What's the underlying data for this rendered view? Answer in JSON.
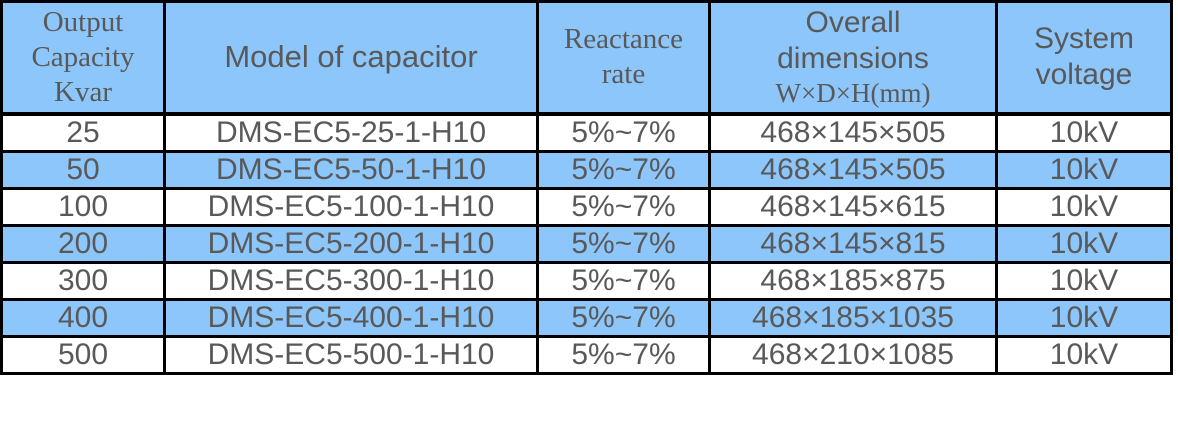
{
  "colors": {
    "cell_blue": "#8dc6fa",
    "border": "#000000",
    "text": "#595959",
    "page_bg": "#ffffff"
  },
  "header": {
    "capacity_lines": [
      "Output",
      "Capacity",
      "Kvar"
    ],
    "model": "Model of capacitor",
    "reactance_lines": [
      "Reactance",
      "rate"
    ],
    "dimensions_lines": [
      "Overall",
      "dimensions"
    ],
    "dimensions_sub": "W×D×H(mm)",
    "voltage_lines": [
      "System",
      "voltage"
    ]
  },
  "rows": [
    {
      "capacity": "25",
      "model": "DMS-EC5-25-1-H10",
      "reactance": "5%~7%",
      "dimensions": "468×145×505",
      "voltage": "10kV"
    },
    {
      "capacity": "50",
      "model": "DMS-EC5-50-1-H10",
      "reactance": "5%~7%",
      "dimensions": "468×145×505",
      "voltage": "10kV"
    },
    {
      "capacity": "100",
      "model": "DMS-EC5-100-1-H10",
      "reactance": "5%~7%",
      "dimensions": "468×145×615",
      "voltage": "10kV"
    },
    {
      "capacity": "200",
      "model": "DMS-EC5-200-1-H10",
      "reactance": "5%~7%",
      "dimensions": "468×145×815",
      "voltage": "10kV"
    },
    {
      "capacity": "300",
      "model": "DMS-EC5-300-1-H10",
      "reactance": "5%~7%",
      "dimensions": "468×185×875",
      "voltage": "10kV"
    },
    {
      "capacity": "400",
      "model": "DMS-EC5-400-1-H10",
      "reactance": "5%~7%",
      "dimensions": "468×185×1035",
      "voltage": "10kV"
    },
    {
      "capacity": "500",
      "model": "DMS-EC5-500-1-H10",
      "reactance": "5%~7%",
      "dimensions": "468×210×1085",
      "voltage": "10kV"
    }
  ]
}
